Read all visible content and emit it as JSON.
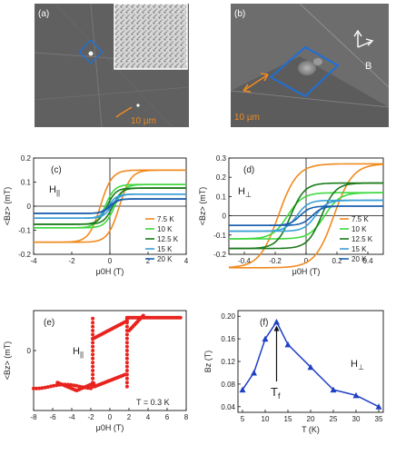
{
  "panels": {
    "a": {
      "tag": "(a)",
      "scale": "10 µm"
    },
    "b": {
      "tag": "(b)",
      "scale": "10 µm",
      "field_label": "B"
    },
    "c": {
      "tag": "(c)",
      "field_label": "H",
      "field_sub": "||"
    },
    "d": {
      "tag": "(d)",
      "field_label": "H",
      "field_sub": "⊥"
    },
    "e": {
      "tag": "(e)",
      "field_label": "H",
      "field_sub": "||",
      "temp_label": "T = 0.3 K"
    },
    "f": {
      "tag": "(f)",
      "field_label": "H",
      "field_sub": "⊥",
      "peak_label": "T",
      "peak_sub": "f"
    }
  },
  "colors": {
    "accent_orange": "#f08a1e",
    "box_blue": "#1f6fd6",
    "e_red": "#e8231e",
    "f_blue": "#1f3fc4"
  },
  "chart_data": [
    {
      "id": "c",
      "type": "line",
      "xlabel": "μ0H (T)",
      "ylabel": "<Bz> (mT)",
      "xlim": [
        -4,
        4
      ],
      "ylim": [
        -0.2,
        0.2
      ],
      "xticks": [
        -4,
        -2,
        0,
        2,
        4
      ],
      "yticks": [
        -0.2,
        -0.1,
        0.0,
        0.1,
        0.2
      ],
      "legend_position": "right",
      "series": [
        {
          "name": "7.5 K",
          "color": "#f08a1e",
          "sat": 0.15,
          "hc": 0.5
        },
        {
          "name": "10 K",
          "color": "#3ed83e",
          "sat": 0.09,
          "hc": 0.25
        },
        {
          "name": "12.5 K",
          "color": "#1a7a1a",
          "sat": 0.075,
          "hc": 0.15
        },
        {
          "name": "15 K",
          "color": "#3aa0d8",
          "sat": 0.05,
          "hc": 0.08
        },
        {
          "name": "20 K",
          "color": "#1c5fb0",
          "sat": 0.03,
          "hc": 0.04
        }
      ]
    },
    {
      "id": "d",
      "type": "line",
      "xlabel": "μ0H (T)",
      "ylabel": "<Bz> (mT)",
      "xlim": [
        -0.5,
        0.5
      ],
      "ylim": [
        -0.2,
        0.3
      ],
      "xticks": [
        -0.4,
        -0.2,
        0.0,
        0.2,
        0.4
      ],
      "yticks": [
        -0.2,
        -0.1,
        0.0,
        0.1,
        0.2,
        0.3
      ],
      "legend_position": "right",
      "series": [
        {
          "name": "7.5 K",
          "color": "#f08a1e",
          "sat": 0.27,
          "hc": 0.18
        },
        {
          "name": "10 K",
          "color": "#3ed83e",
          "sat": 0.12,
          "hc": 0.12
        },
        {
          "name": "12.5 K",
          "color": "#1a7a1a",
          "sat": 0.17,
          "hc": 0.1
        },
        {
          "name": "15 K",
          "color": "#3aa0d8",
          "sat": 0.08,
          "hc": 0.06
        },
        {
          "name": "20 K",
          "color": "#1c5fb0",
          "sat": 0.05,
          "hc": 0.04
        }
      ]
    },
    {
      "id": "e",
      "type": "scatter",
      "xlabel": "μ0H (T)",
      "ylabel": "<Bz> (mT)",
      "xlim": [
        -8,
        8
      ],
      "ylim": [
        -0.6,
        0.4
      ],
      "xticks": [
        -8,
        -6,
        -4,
        -2,
        0,
        2,
        4,
        6,
        8
      ],
      "yticks": [
        0.0
      ],
      "switch_fields": [
        -1.8,
        1.8
      ],
      "sat_high": 0.33,
      "sat_low": -0.36
    },
    {
      "id": "f",
      "type": "line",
      "xlabel": "T (K)",
      "ylabel": "Bz (T)",
      "xlim": [
        4,
        36
      ],
      "ylim": [
        0.03,
        0.21
      ],
      "xticks": [
        5,
        10,
        15,
        20,
        25,
        30,
        35
      ],
      "yticks": [
        0.04,
        0.08,
        0.12,
        0.16,
        0.2
      ],
      "x": [
        5,
        7.5,
        10,
        12.5,
        15,
        20,
        25,
        30,
        35
      ],
      "y": [
        0.07,
        0.1,
        0.16,
        0.19,
        0.15,
        0.11,
        0.07,
        0.06,
        0.04
      ]
    }
  ]
}
